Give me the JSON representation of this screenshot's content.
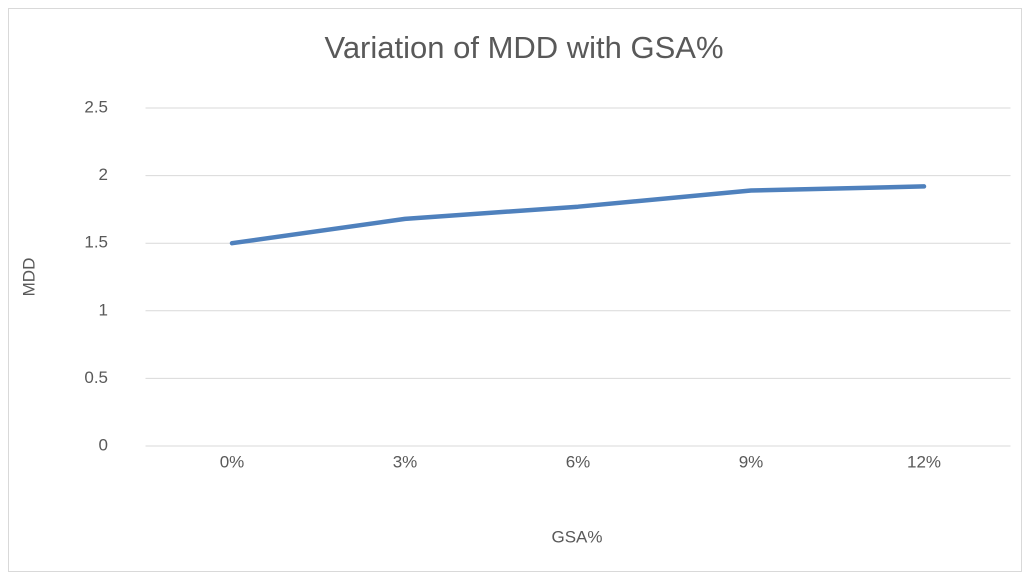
{
  "chart_data": {
    "type": "line",
    "title": "Variation of MDD with GSA%",
    "x_label": "GSA%",
    "y_label": "MDD",
    "categories": [
      "0%",
      "3%",
      "6%",
      "9%",
      "12%"
    ],
    "series": [
      {
        "name": "MDD",
        "color": "#4f81bd",
        "values": [
          1.5,
          1.68,
          1.77,
          1.89,
          1.92
        ]
      }
    ],
    "ylim": [
      0,
      2.5
    ],
    "yticks": [
      0,
      0.5,
      1,
      1.5,
      2,
      2.5
    ],
    "grid": true
  }
}
